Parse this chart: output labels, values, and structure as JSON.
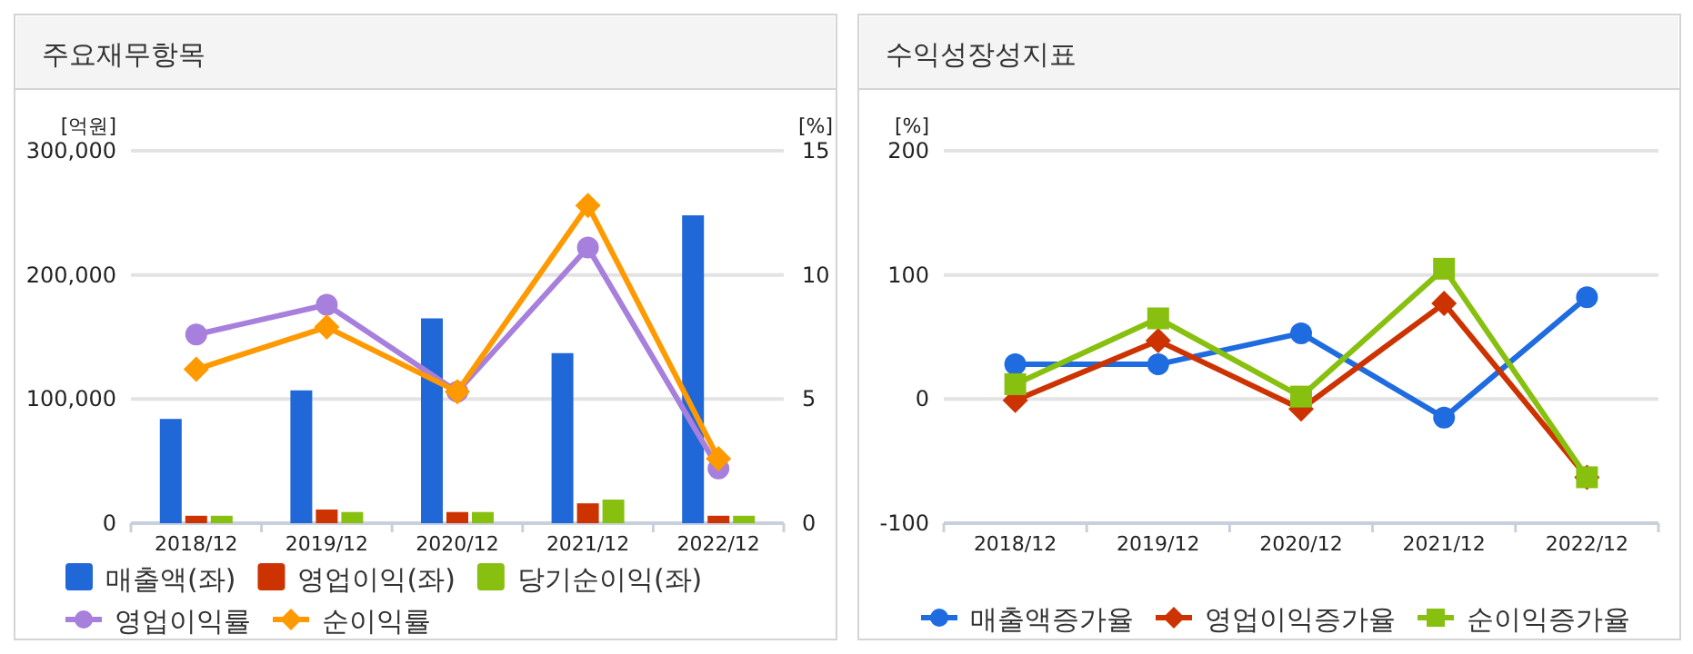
{
  "chart_data": [
    {
      "type": "bar",
      "title": "주요재무항목",
      "ylabel": "[억원]",
      "y2label": "[%]",
      "categories": [
        "2018/12",
        "2019/12",
        "2020/12",
        "2021/12",
        "2022/12"
      ],
      "series": [
        {
          "name": "매출액(좌)",
          "color": "#2067d8",
          "values": [
            84000,
            107000,
            165000,
            137000,
            248000
          ]
        },
        {
          "name": "영업이익(좌)",
          "color": "#cc3300",
          "values": [
            6000,
            11000,
            9000,
            16000,
            6000
          ]
        },
        {
          "name": "당기순이익(좌)",
          "color": "#88c010",
          "values": [
            6000,
            9000,
            9000,
            19000,
            6000
          ]
        },
        {
          "name": "영업이익률",
          "type": "line",
          "axis": "y2",
          "marker": "circle",
          "color": "#a77fdc",
          "values": [
            7.6,
            8.8,
            5.3,
            11.1,
            2.2
          ]
        },
        {
          "name": "순이익률",
          "type": "line",
          "axis": "y2",
          "marker": "diamond",
          "color": "#ff9900",
          "values": [
            6.2,
            7.9,
            5.3,
            12.8,
            2.6
          ]
        }
      ],
      "ylim": [
        0,
        300000
      ],
      "yticks": [
        {
          "value": 0,
          "label": "0"
        },
        {
          "value": 100000,
          "label": "100,000"
        },
        {
          "value": 200000,
          "label": "200,000"
        },
        {
          "value": 300000,
          "label": "300,000"
        }
      ],
      "y2lim": [
        0,
        15
      ],
      "y2ticks": [
        0,
        5,
        10,
        15
      ],
      "grid": "y",
      "legend": "bottom"
    },
    {
      "type": "line",
      "title": "수익성장성지표",
      "ylabel": "[%]",
      "categories": [
        "2018/12",
        "2019/12",
        "2020/12",
        "2021/12",
        "2022/12"
      ],
      "series": [
        {
          "name": "매출액증가율",
          "marker": "circle",
          "color": "#1f6be0",
          "values": [
            28,
            28,
            53,
            -15,
            82
          ]
        },
        {
          "name": "영업이익증가율",
          "marker": "diamond",
          "color": "#cc3300",
          "values": [
            -1,
            47,
            -8,
            77,
            -63
          ]
        },
        {
          "name": "순이익증가율",
          "marker": "square",
          "color": "#88c010",
          "values": [
            12,
            65,
            2,
            105,
            -63
          ]
        }
      ],
      "ylim": [
        -100,
        200
      ],
      "yticks": [
        -100,
        0,
        100,
        200
      ],
      "grid": "y",
      "legend": "bottom"
    }
  ]
}
